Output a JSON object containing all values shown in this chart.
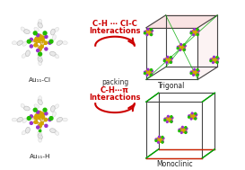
{
  "bg_color": "#ffffff",
  "panels": {
    "au11_cl_label": "Au₁₁-Cl",
    "au11_h_label": "Au₁₁-H",
    "trigonal_label": "Trigonal",
    "monoclinic_label": "Monoclinic",
    "top_text_line1": "C-H ⋯ Cl-C",
    "top_text_line2": "Interactions",
    "bottom_text_line1": "C-H⋯π",
    "bottom_text_line2": "Interactions",
    "packing_text": "packing",
    "arrow_color": "#cc0000",
    "label_color": "#222222"
  },
  "cluster_au_color": "#d4a500",
  "cluster_p_color": "#9933cc",
  "cluster_cl_color": "#22bb00",
  "crystal_frame_color": "#444444",
  "trigonal_face_color": "#f0b0b0",
  "green_line_color": "#00aa00",
  "red_line_color": "#cc2200"
}
